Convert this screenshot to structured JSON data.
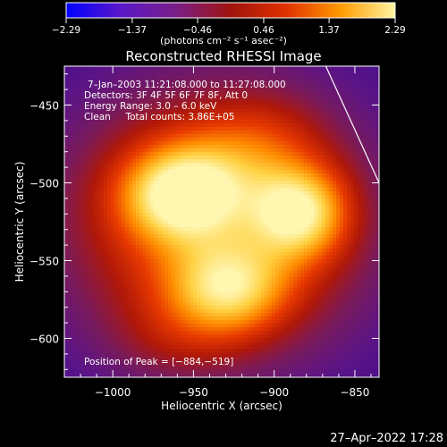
{
  "chart_data": {
    "type": "heatmap",
    "title": "Reconstructed RHESSI Image",
    "xlabel": "Heliocentric X (arcsec)",
    "ylabel": "Heliocentric Y (arcsec)",
    "xlim": [
      -1030,
      -835
    ],
    "ylim": [
      -625,
      -425
    ],
    "xticks": [
      -1000,
      -950,
      -900,
      -850
    ],
    "yticks": [
      -450,
      -500,
      -550,
      -600
    ],
    "xtick_labels": [
      "−1000",
      "−950",
      "−900",
      "−850"
    ],
    "ytick_labels": [
      "−450",
      "−500",
      "−550",
      "−600"
    ],
    "colorbar": {
      "min": -2.29,
      "max": 2.29,
      "ticks": [
        -2.29,
        -1.37,
        -0.46,
        0.46,
        1.37,
        2.29
      ],
      "tick_labels": [
        "−2.29",
        "−1.37",
        "−0.46",
        "0.46",
        "1.37",
        "2.29"
      ],
      "unit_label": "(photons cm⁻² s⁻¹ asec⁻²)",
      "stops": [
        "#0000ff",
        "#5a18c8",
        "#7a1e88",
        "#a0140e",
        "#e03000",
        "#ff9a00",
        "#fff6a0"
      ]
    },
    "annotations": {
      "time_range": "7–Jan–2003 11:21:08.000 to 11:27:08.000",
      "detectors": "Detectors: 3F 4F 5F 6F 7F 8F, Att 0",
      "energy_range": "Energy Range: 3.0 – 6.0 keV",
      "clean_counts": "Clean     Total counts: 3.86E+05",
      "peak": "Position of Peak = [−884,−519]"
    },
    "peak": {
      "x": -884,
      "y": -519
    },
    "blobs": [
      {
        "x": -935,
        "y": -525,
        "sx": 68,
        "sy": 62,
        "a": 0.62
      },
      {
        "x": -960,
        "y": -508,
        "sx": 24,
        "sy": 20,
        "a": 0.55
      },
      {
        "x": -884,
        "y": -519,
        "sx": 20,
        "sy": 20,
        "a": 0.6
      },
      {
        "x": -928,
        "y": -568,
        "sx": 25,
        "sy": 20,
        "a": 0.5
      },
      {
        "x": -935,
        "y": -495,
        "sx": 28,
        "sy": 22,
        "a": 0.18
      },
      {
        "x": -905,
        "y": -470,
        "sx": 25,
        "sy": 20,
        "a": 0.12
      },
      {
        "x": -960,
        "y": -600,
        "sx": 30,
        "sy": 20,
        "a": 0.12
      }
    ],
    "limb_line": {
      "x0": -868,
      "y0": -425,
      "x1": -835,
      "y1": -500
    },
    "footer_timestamp": "27–Apr–2022 17:28"
  }
}
